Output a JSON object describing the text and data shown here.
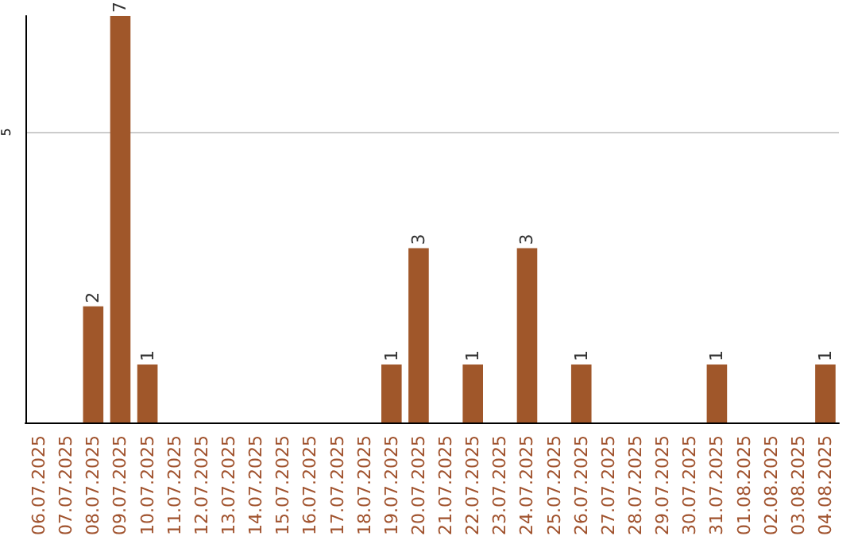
{
  "chart_data": {
    "type": "bar",
    "categories": [
      "06.07.2025",
      "07.07.2025",
      "08.07.2025",
      "09.07.2025",
      "10.07.2025",
      "11.07.2025",
      "12.07.2025",
      "13.07.2025",
      "14.07.2025",
      "15.07.2025",
      "16.07.2025",
      "17.07.2025",
      "18.07.2025",
      "19.07.2025",
      "20.07.2025",
      "21.07.2025",
      "22.07.2025",
      "23.07.2025",
      "24.07.2025",
      "25.07.2025",
      "26.07.2025",
      "27.07.2025",
      "28.07.2025",
      "29.07.2025",
      "30.07.2025",
      "31.07.2025",
      "01.08.2025",
      "02.08.2025",
      "03.08.2025",
      "04.08.2025"
    ],
    "values": [
      0,
      0,
      2,
      7,
      1,
      0,
      0,
      0,
      0,
      0,
      0,
      0,
      0,
      1,
      3,
      0,
      1,
      0,
      3,
      0,
      1,
      0,
      0,
      0,
      0,
      1,
      0,
      0,
      0,
      1
    ],
    "value_labels": [
      null,
      null,
      "2",
      "7",
      "1",
      null,
      null,
      null,
      null,
      null,
      null,
      null,
      null,
      "1",
      "3",
      null,
      "1",
      null,
      "3",
      null,
      "1",
      null,
      null,
      null,
      null,
      "1",
      null,
      null,
      null,
      "1"
    ],
    "color": "#a0572a",
    "ylim": [
      0,
      7
    ],
    "yticks": [
      {
        "value": 0,
        "label": null
      },
      5
    ],
    "grid": "y"
  }
}
